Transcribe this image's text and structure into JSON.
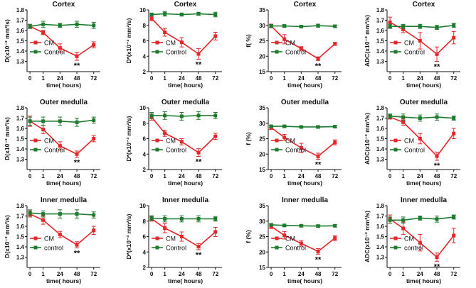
{
  "colors": {
    "cm": "#e3262a",
    "control": "#1e7a2e",
    "axis": "#111111"
  },
  "chart_data": [
    {
      "type": "line",
      "title": "Cortex",
      "ylabel": "D(x10⁻³ mm²/s)",
      "xlabel": "time( hours)",
      "x": [
        0,
        1,
        24,
        48,
        72
      ],
      "x_ticks": [
        "0",
        "1",
        "24",
        "48",
        "72"
      ],
      "ylim": [
        1.2,
        1.8
      ],
      "y_ticks": [
        1.3,
        1.4,
        1.5,
        1.6,
        1.7,
        1.8
      ],
      "y_tick_labels": [
        "1.3",
        "1.4",
        "1.5",
        "1.6",
        "1.7",
        "1.8"
      ],
      "legend_position": "middle-left",
      "significance": [
        {
          "x": 48,
          "label": "**"
        }
      ],
      "series": [
        {
          "name": "CM",
          "color_key": "cm",
          "values": [
            1.64,
            1.58,
            1.43,
            1.35,
            1.46
          ],
          "errors": [
            0.02,
            0.02,
            0.04,
            0.04,
            0.03
          ]
        },
        {
          "name": "Control",
          "color_key": "control",
          "values": [
            1.64,
            1.66,
            1.65,
            1.66,
            1.65
          ],
          "errors": [
            0.02,
            0.03,
            0.02,
            0.03,
            0.03
          ]
        }
      ]
    },
    {
      "type": "line",
      "title": "Cortex",
      "ylabel": "D*(x10⁻³ mm²/s)",
      "xlabel": "time( hours)",
      "x": [
        0,
        1,
        24,
        48,
        72
      ],
      "x_ticks": [
        "0",
        "1",
        "24",
        "48",
        "72"
      ],
      "ylim": [
        2,
        10
      ],
      "y_ticks": [
        2,
        4,
        6,
        8,
        10
      ],
      "y_tick_labels": [
        "2",
        "4",
        "6",
        "8",
        "10"
      ],
      "legend_position": "middle-left",
      "significance": [
        {
          "x": 48,
          "label": "**"
        }
      ],
      "series": [
        {
          "name": "CM",
          "color_key": "cm",
          "values": [
            8.9,
            7.1,
            5.8,
            4.3,
            6.6
          ],
          "errors": [
            0.3,
            0.5,
            0.6,
            0.7,
            0.5
          ]
        },
        {
          "name": "Control",
          "color_key": "control",
          "values": [
            9.4,
            9.5,
            9.4,
            9.5,
            9.4
          ],
          "errors": [
            0.2,
            0.3,
            0.2,
            0.2,
            0.3
          ]
        }
      ]
    },
    {
      "type": "line",
      "title": "Cortex",
      "ylabel": "f( %)",
      "xlabel": "time( hours)",
      "x": [
        0,
        1,
        24,
        48,
        72
      ],
      "x_ticks": [
        "0",
        "1",
        "24",
        "48",
        "72"
      ],
      "ylim": [
        15,
        35
      ],
      "y_ticks": [
        15,
        20,
        25,
        30,
        35
      ],
      "y_tick_labels": [
        "15",
        "20",
        "25",
        "30",
        "35"
      ],
      "legend_position": "middle-left",
      "significance": [
        {
          "x": 48,
          "label": "**"
        }
      ],
      "series": [
        {
          "name": "CM",
          "color_key": "cm",
          "values": [
            29.8,
            25.5,
            22.5,
            19.2,
            24.0
          ],
          "errors": [
            0.6,
            1.5,
            0.6,
            0.6,
            0.5
          ]
        },
        {
          "name": "Control",
          "color_key": "control",
          "values": [
            29.8,
            29.8,
            29.6,
            29.9,
            29.7
          ],
          "errors": [
            0.4,
            0.4,
            0.4,
            0.5,
            0.4
          ]
        }
      ]
    },
    {
      "type": "line",
      "title": "Cortex",
      "ylabel": "ADC(x10⁻³ mm²/s)",
      "xlabel": "time( hours)",
      "x": [
        0,
        1,
        24,
        48,
        72
      ],
      "x_ticks": [
        "0",
        "1",
        "24",
        "48",
        "72"
      ],
      "ylim": [
        1.2,
        1.8
      ],
      "y_ticks": [
        1.3,
        1.4,
        1.5,
        1.6,
        1.7,
        1.8
      ],
      "y_tick_labels": [
        "1.3",
        "1.4",
        "1.5",
        "1.6",
        "1.7",
        "1.8"
      ],
      "legend_position": "middle-left",
      "significance": [
        {
          "x": 48,
          "label": "**"
        }
      ],
      "series": [
        {
          "name": "CM",
          "color_key": "cm",
          "values": [
            1.68,
            1.61,
            1.5,
            1.37,
            1.53
          ],
          "errors": [
            0.05,
            0.03,
            0.08,
            0.07,
            0.06
          ]
        },
        {
          "name": "Control",
          "color_key": "control",
          "values": [
            1.64,
            1.64,
            1.64,
            1.63,
            1.65
          ],
          "errors": [
            0.02,
            0.02,
            0.02,
            0.02,
            0.02
          ]
        }
      ]
    },
    {
      "type": "line",
      "title": "Outer medulla",
      "ylabel": "D(x10⁻³ mm²/s)",
      "xlabel": "time( hours)",
      "x": [
        0,
        1,
        24,
        48,
        72
      ],
      "x_ticks": [
        "0",
        "1",
        "24",
        "48",
        "72"
      ],
      "ylim": [
        1.2,
        1.8
      ],
      "y_ticks": [
        1.3,
        1.4,
        1.5,
        1.6,
        1.7,
        1.8
      ],
      "y_tick_labels": [
        "1.3",
        "1.4",
        "1.5",
        "1.6",
        "1.7",
        "1.8"
      ],
      "legend_position": "middle-left",
      "significance": [
        {
          "x": 48,
          "label": "**"
        }
      ],
      "series": [
        {
          "name": "CM",
          "color_key": "cm",
          "values": [
            1.67,
            1.59,
            1.43,
            1.35,
            1.5
          ],
          "errors": [
            0.05,
            0.04,
            0.04,
            0.03,
            0.03
          ]
        },
        {
          "name": "Control",
          "color_key": "control",
          "values": [
            1.67,
            1.67,
            1.67,
            1.66,
            1.68
          ],
          "errors": [
            0.04,
            0.04,
            0.04,
            0.04,
            0.03
          ]
        }
      ]
    },
    {
      "type": "line",
      "title": "Outer medulla",
      "ylabel": "D*(x10⁻³ mm²/s)",
      "xlabel": "time( hours)",
      "x": [
        0,
        1,
        24,
        48,
        72
      ],
      "x_ticks": [
        "0",
        "1",
        "24",
        "48",
        "72"
      ],
      "ylim": [
        2,
        10
      ],
      "y_ticks": [
        2,
        4,
        6,
        8,
        10
      ],
      "y_tick_labels": [
        "2",
        "4",
        "6",
        "8",
        "10"
      ],
      "legend_position": "middle-left",
      "significance": [
        {
          "x": 48,
          "label": "**"
        }
      ],
      "series": [
        {
          "name": "CM",
          "color_key": "cm",
          "values": [
            8.8,
            6.7,
            5.6,
            4.2,
            6.3
          ],
          "errors": [
            0.4,
            0.4,
            0.4,
            0.5,
            0.4
          ]
        },
        {
          "name": "Control",
          "color_key": "control",
          "values": [
            9.0,
            9.0,
            8.9,
            9.0,
            9.0
          ],
          "errors": [
            0.4,
            0.5,
            0.5,
            0.5,
            0.4
          ]
        }
      ]
    },
    {
      "type": "line",
      "title": "Outer medulla",
      "ylabel": "f (%)",
      "xlabel": "time( hours)",
      "x": [
        0,
        1,
        24,
        48,
        72
      ],
      "x_ticks": [
        "0",
        "1",
        "24",
        "48",
        "72"
      ],
      "ylim": [
        15,
        35
      ],
      "y_ticks": [
        15,
        20,
        25,
        30,
        35
      ],
      "y_tick_labels": [
        "15",
        "20",
        "25",
        "30",
        "35"
      ],
      "legend_position": "middle-left",
      "significance": [
        {
          "x": 48,
          "label": "**"
        }
      ],
      "series": [
        {
          "name": "CM",
          "color_key": "cm",
          "values": [
            28.6,
            25.4,
            22.0,
            19.3,
            23.8
          ],
          "errors": [
            0.6,
            1.0,
            1.5,
            1.0,
            0.8
          ]
        },
        {
          "name": "Control",
          "color_key": "control",
          "values": [
            29.0,
            29.0,
            28.8,
            28.8,
            28.9
          ],
          "errors": [
            0.4,
            0.4,
            0.3,
            0.4,
            0.3
          ]
        }
      ]
    },
    {
      "type": "line",
      "title": "Outer medulla",
      "ylabel": "ADC(x10⁻³ mm²/s)",
      "xlabel": "time( hours)",
      "x": [
        0,
        1,
        24,
        48,
        72
      ],
      "x_ticks": [
        "0",
        "1",
        "24",
        "48",
        "72"
      ],
      "ylim": [
        1.2,
        1.8
      ],
      "y_ticks": [
        1.3,
        1.4,
        1.5,
        1.6,
        1.7,
        1.8
      ],
      "y_tick_labels": [
        "1.3",
        "1.4",
        "1.5",
        "1.6",
        "1.7",
        "1.8"
      ],
      "legend_position": "middle-left",
      "significance": [
        {
          "x": 48,
          "label": "**"
        }
      ],
      "series": [
        {
          "name": "CM",
          "color_key": "cm",
          "values": [
            1.71,
            1.66,
            1.5,
            1.33,
            1.55
          ],
          "errors": [
            0.02,
            0.03,
            0.05,
            0.04,
            0.05
          ]
        },
        {
          "name": "Control",
          "color_key": "control",
          "values": [
            1.72,
            1.71,
            1.7,
            1.71,
            1.7
          ],
          "errors": [
            0.02,
            0.03,
            0.03,
            0.03,
            0.02
          ]
        }
      ]
    },
    {
      "type": "line",
      "title": "Inner medulla",
      "ylabel": "D(x10⁻³ mm²/s)",
      "xlabel": "time( hours)",
      "x": [
        0,
        1,
        24,
        48,
        72
      ],
      "x_ticks": [
        "0",
        "1",
        "24",
        "48",
        "72"
      ],
      "ylim": [
        1.2,
        1.8
      ],
      "y_ticks": [
        1.3,
        1.4,
        1.5,
        1.6,
        1.7,
        1.8
      ],
      "y_tick_labels": [
        "1.3",
        "1.4",
        "1.5",
        "1.6",
        "1.7",
        "1.8"
      ],
      "legend_position": "middle-left",
      "significance": [
        {
          "x": 48,
          "label": "**"
        }
      ],
      "series": [
        {
          "name": "CM",
          "color_key": "cm",
          "values": [
            1.72,
            1.66,
            1.52,
            1.42,
            1.56
          ],
          "errors": [
            0.03,
            0.04,
            0.03,
            0.03,
            0.04
          ]
        },
        {
          "name": "control",
          "color_key": "control",
          "values": [
            1.73,
            1.72,
            1.72,
            1.72,
            1.71
          ],
          "errors": [
            0.03,
            0.03,
            0.04,
            0.04,
            0.03
          ]
        }
      ]
    },
    {
      "type": "line",
      "title": "Inner medulla",
      "ylabel": "D*(x10⁻³ mm²/s)",
      "xlabel": "time( hours)",
      "x": [
        0,
        1,
        24,
        48,
        72
      ],
      "x_ticks": [
        "0",
        "1",
        "24",
        "48",
        "72"
      ],
      "ylim": [
        2,
        10
      ],
      "y_ticks": [
        2,
        4,
        6,
        8,
        10
      ],
      "y_tick_labels": [
        "2",
        "4",
        "6",
        "8",
        "10"
      ],
      "legend_position": "middle-left",
      "significance": [
        {
          "x": 48,
          "label": "**"
        }
      ],
      "series": [
        {
          "name": "CM",
          "color_key": "cm",
          "values": [
            8.3,
            7.1,
            6.0,
            4.7,
            6.6
          ],
          "errors": [
            0.3,
            0.6,
            0.6,
            0.4,
            0.6
          ]
        },
        {
          "name": "Control",
          "color_key": "control",
          "values": [
            8.4,
            8.3,
            8.3,
            8.3,
            8.3
          ],
          "errors": [
            0.3,
            0.4,
            0.4,
            0.4,
            0.3
          ]
        }
      ]
    },
    {
      "type": "line",
      "title": "Inner medulla",
      "ylabel": "f (%)",
      "xlabel": "time( hours)",
      "x": [
        0,
        1,
        24,
        48,
        72
      ],
      "x_ticks": [
        "0",
        "1",
        "24",
        "48",
        "72"
      ],
      "ylim": [
        15,
        35
      ],
      "y_ticks": [
        15,
        20,
        25,
        30,
        35
      ],
      "y_tick_labels": [
        "15",
        "20",
        "25",
        "30",
        "35"
      ],
      "legend_position": "middle-left",
      "significance": [
        {
          "x": 48,
          "label": "**"
        }
      ],
      "series": [
        {
          "name": "CM",
          "color_key": "cm",
          "values": [
            28.3,
            25.4,
            22.8,
            20.2,
            24.5
          ],
          "errors": [
            0.7,
            1.2,
            0.9,
            0.9,
            0.8
          ]
        },
        {
          "name": "Control",
          "color_key": "control",
          "values": [
            28.8,
            28.6,
            28.5,
            28.4,
            28.5
          ],
          "errors": [
            0.4,
            0.4,
            0.4,
            0.4,
            0.4
          ]
        }
      ]
    },
    {
      "type": "line",
      "title": "Inner medulla",
      "ylabel": "ADC(x10⁻³ mm²/s)",
      "xlabel": "time( hours)",
      "x": [
        0,
        1,
        24,
        48,
        72
      ],
      "x_ticks": [
        "0",
        "1",
        "24",
        "48",
        "72"
      ],
      "ylim": [
        1.2,
        1.8
      ],
      "y_ticks": [
        1.3,
        1.4,
        1.5,
        1.6,
        1.7,
        1.8
      ],
      "y_tick_labels": [
        "1.3",
        "1.4",
        "1.5",
        "1.6",
        "1.7",
        "1.8"
      ],
      "legend_position": "middle-left",
      "significance": [
        {
          "x": 48,
          "label": "**"
        }
      ],
      "series": [
        {
          "name": "CM",
          "color_key": "cm",
          "values": [
            1.67,
            1.58,
            1.44,
            1.3,
            1.51
          ],
          "errors": [
            0.04,
            0.06,
            0.08,
            0.04,
            0.07
          ]
        },
        {
          "name": "control",
          "color_key": "control",
          "values": [
            1.66,
            1.66,
            1.68,
            1.67,
            1.69
          ],
          "errors": [
            0.03,
            0.03,
            0.02,
            0.03,
            0.02
          ]
        }
      ]
    }
  ]
}
